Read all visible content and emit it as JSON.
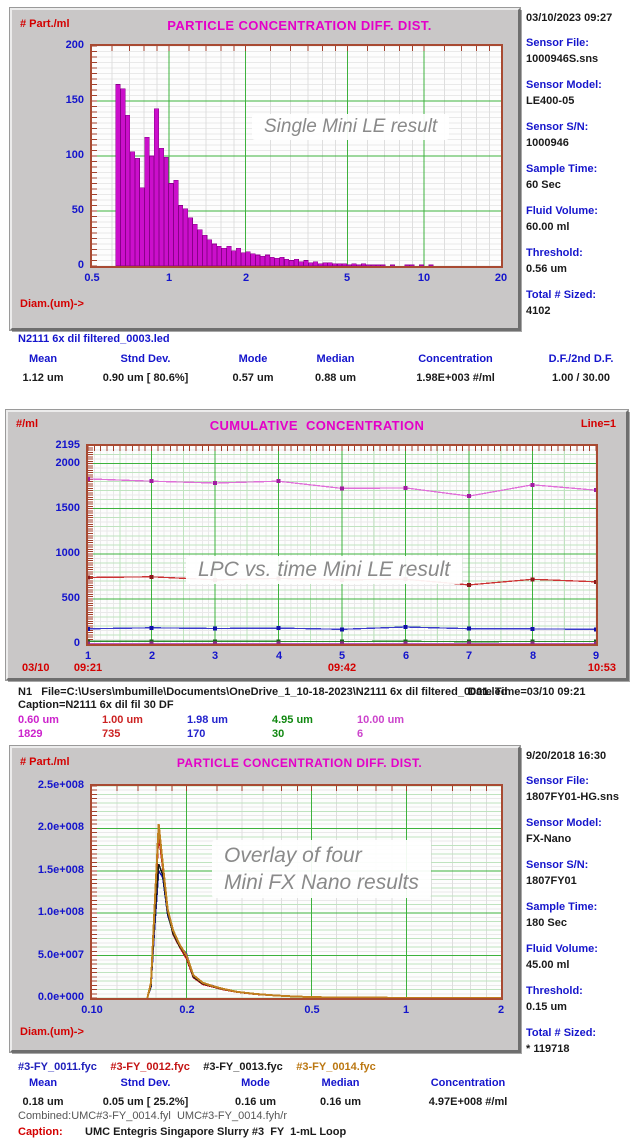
{
  "panel1": {
    "filename": "N2111 6x dil filtered_0003.led",
    "sidebar": {
      "datetime": "03/10/2023 09:27",
      "fields": [
        {
          "label": "Sensor File:",
          "value": "1000946S.sns"
        },
        {
          "label": "Sensor Model:",
          "value": "LE400-05"
        },
        {
          "label": "Sensor S/N:",
          "value": "1000946"
        },
        {
          "label": "Sample Time:",
          "value": "60 Sec"
        },
        {
          "label": "Fluid Volume:",
          "value": "60.00 ml"
        },
        {
          "label": "Threshold:",
          "value": "0.56 um"
        },
        {
          "label": "Total # Sized:",
          "value": "4102"
        }
      ]
    },
    "stats": {
      "headers": [
        "Mean",
        "Stnd Dev.",
        "Mode",
        "Median",
        "Concentration",
        "D.F./2nd D.F."
      ],
      "values": [
        "1.12 um",
        "0.90 um [ 80.6%]",
        "0.57 um",
        "0.88 um",
        "1.98E+003 #/ml",
        "1.00 / 30.00"
      ]
    }
  },
  "panel2": {
    "info_file": "N1   File=C:\\Users\\mbumille\\Documents\\OneDrive_1_10-18-2023\\N2111 6x dil filtered_0001.led",
    "info_datetime": "Date Time=03/10 09:21",
    "caption_line": "Caption=N2111 6x dil fil 30 DF",
    "channels": [
      {
        "size": "0.60 um",
        "count": "1829",
        "color": "#cc22cc"
      },
      {
        "size": "1.00 um",
        "count": "735",
        "color": "#cc2222"
      },
      {
        "size": "1.98 um",
        "count": "170",
        "color": "#2222cc"
      },
      {
        "size": "4.95 um",
        "count": "30",
        "color": "#118811"
      },
      {
        "size": "10.00 um",
        "count": "6",
        "color": "#cc44cc"
      }
    ]
  },
  "panel3": {
    "sidebar": {
      "datetime": "9/20/2018 16:30",
      "fields": [
        {
          "label": "Sensor File:",
          "value": "1807FY01-HG.sns"
        },
        {
          "label": "Sensor Model:",
          "value": "FX-Nano"
        },
        {
          "label": "Sensor S/N:",
          "value": "1807FY01"
        },
        {
          "label": "Sample Time:",
          "value": "180 Sec"
        },
        {
          "label": "Fluid Volume:",
          "value": "45.00 ml"
        },
        {
          "label": "Threshold:",
          "value": "0.15 um"
        },
        {
          "label": "Total # Sized:",
          "value": "* 119718"
        }
      ]
    },
    "files": [
      {
        "name": "#3-FY_0011.fyc",
        "color": "#2020bb"
      },
      {
        "name": "#3-FY_0012.fyc",
        "color": "#c41414"
      },
      {
        "name": "#3-FY_0013.fyc",
        "color": "#1a1a1a"
      },
      {
        "name": "#3-FY_0014.fyc",
        "color": "#bb7711"
      }
    ],
    "stats": {
      "headers": [
        "Mean",
        "Stnd Dev.",
        "Mode",
        "Median",
        "Concentration"
      ],
      "values": [
        "0.18 um",
        "0.05 um [ 25.2%]",
        "0.16 um",
        "0.16 um",
        "4.97E+008 #/ml"
      ]
    },
    "combined_line": "Combined:UMC#3-FY_0014.fyl  UMC#3-FY_0014.fyh/r",
    "caption_label": "Caption:",
    "caption_value": "UMC Entegris Singapore Slurry #3  FY  1-mL Loop"
  },
  "chart_data": [
    {
      "id": "le-diff",
      "type": "bar",
      "title": "PARTICLE CONCENTRATION DIFF. DIST.",
      "ylabel": "# Part./ml",
      "xlabel": "Diam.(um)->",
      "annotation": "Single Mini LE result",
      "x_scale": "log",
      "xlim": [
        0.5,
        20
      ],
      "ylim": [
        0,
        200
      ],
      "y_ticks": [
        {
          "v": 200,
          "t": "200"
        },
        {
          "v": 150,
          "t": "150"
        },
        {
          "v": 100,
          "t": "100"
        },
        {
          "v": 50,
          "t": "50"
        },
        {
          "v": 0,
          "t": "0"
        }
      ],
      "x_ticks": [
        {
          "v": 0.5,
          "t": "0.5"
        },
        {
          "v": 1,
          "t": "1"
        },
        {
          "v": 2,
          "t": "2"
        },
        {
          "v": 5,
          "t": "5"
        },
        {
          "v": 10,
          "t": "10"
        },
        {
          "v": 20,
          "t": "20"
        }
      ],
      "bars": {
        "start": 0.62,
        "log_step": 0.01887,
        "color": "#cb0fcb",
        "stroke": "#8a008a",
        "heights": [
          165,
          161,
          137,
          104,
          98,
          71,
          117,
          100,
          143,
          107,
          99,
          75,
          78,
          55,
          52,
          44,
          38,
          33,
          28,
          24,
          20,
          18,
          16,
          18,
          14,
          16,
          12,
          13,
          11,
          10,
          9,
          10,
          8,
          7,
          8,
          6,
          5,
          6,
          4,
          5,
          3,
          4,
          2,
          3,
          3,
          2,
          2,
          2,
          1,
          2,
          1,
          2,
          1,
          1,
          1,
          1,
          0,
          1,
          0,
          0,
          1,
          1,
          0,
          1,
          0,
          1
        ]
      },
      "grid": {
        "y_fine_step": 5,
        "y_major": [
          50,
          100,
          150
        ],
        "x_minor": [
          0.6,
          0.7,
          0.8,
          0.9,
          1.2,
          1.4,
          1.6,
          1.8,
          2.5,
          3,
          3.5,
          4,
          4.5,
          6,
          7,
          8,
          9,
          12,
          14,
          16,
          18
        ],
        "x_major": [
          1,
          2,
          5,
          10
        ],
        "tick_y_step": 5,
        "tick_x": true
      }
    },
    {
      "id": "le-cum",
      "type": "line",
      "title": "CUMULATIVE  CONCENTRATION",
      "corner_label": "Line=1",
      "ylabel": "#/ml",
      "annotation": "LPC vs. time Mini LE result",
      "x_scale": "linear",
      "xlim": [
        1,
        9
      ],
      "ylim": [
        0,
        2195
      ],
      "y_ticks": [
        {
          "v": 2195,
          "t": "2195"
        },
        {
          "v": 2000,
          "t": "2000"
        },
        {
          "v": 1500,
          "t": "1500"
        },
        {
          "v": 1000,
          "t": "1000"
        },
        {
          "v": 500,
          "t": "500"
        },
        {
          "v": 0,
          "t": "0"
        }
      ],
      "x_ticks": [
        {
          "v": 1,
          "t": "1"
        },
        {
          "v": 2,
          "t": "2"
        },
        {
          "v": 3,
          "t": "3"
        },
        {
          "v": 4,
          "t": "4"
        },
        {
          "v": 5,
          "t": "5"
        },
        {
          "v": 6,
          "t": "6"
        },
        {
          "v": 7,
          "t": "7"
        },
        {
          "v": 8,
          "t": "8"
        },
        {
          "v": 9,
          "t": "9"
        }
      ],
      "time_labels": {
        "date": "03/10",
        "start": "09:21",
        "mid": "09:42",
        "end": "10:53"
      },
      "x": [
        1,
        2,
        3,
        4,
        5,
        6,
        7,
        8,
        9
      ],
      "line_width": 1.3,
      "series": [
        {
          "name": "0.60 um",
          "color": "#df6fd8",
          "marker": "#a11ca1",
          "values": [
            1830,
            1805,
            1785,
            1805,
            1725,
            1730,
            1640,
            1765,
            1705
          ]
        },
        {
          "name": "1.00 um",
          "color": "#cd3333",
          "marker": "#8b1a1a",
          "values": [
            737,
            745,
            712,
            727,
            712,
            718,
            655,
            717,
            690
          ]
        },
        {
          "name": "1.98 um",
          "color": "#3a3acc",
          "marker": "#1111aa",
          "values": [
            168,
            180,
            172,
            176,
            163,
            188,
            170,
            167,
            163
          ]
        },
        {
          "name": "4.95 um",
          "color": "#2e8b2e",
          "marker": "#1a661a",
          "values": [
            30,
            29,
            30,
            29,
            28,
            30,
            26,
            28,
            27
          ]
        },
        {
          "name": "10.00 um",
          "color": "#c055c0",
          "marker": "#8b2e8b",
          "values": [
            6,
            6,
            6,
            6,
            5,
            6,
            5,
            6,
            6
          ]
        }
      ],
      "grid": {
        "y_fine_step": 50,
        "y_mid_step": 100,
        "y_major": [
          500,
          1000,
          1500,
          2000
        ],
        "x_fine_step": 0.1,
        "x_mid": [
          1.5,
          2.5,
          3.5,
          4.5,
          5.5,
          6.5,
          7.5,
          8.5
        ],
        "x_major": [
          2,
          3,
          4,
          5,
          6,
          7,
          8
        ],
        "tick_y_step": 25,
        "tick_x_step": 0.1
      }
    },
    {
      "id": "fx-diff",
      "type": "line",
      "title": "PARTICLE CONCENTRATION DIFF. DIST.",
      "ylabel": "# Part./ml",
      "xlabel": "Diam.(um)->",
      "annotation_line1": "Overlay of four",
      "annotation_line2": "Mini FX Nano results",
      "x_scale": "log",
      "xlim": [
        0.1,
        2
      ],
      "ylim": [
        0,
        250000000.0
      ],
      "y_ticks": [
        {
          "v": 250000000.0,
          "t": "2.5e+008"
        },
        {
          "v": 200000000.0,
          "t": "2.0e+008"
        },
        {
          "v": 150000000.0,
          "t": "1.5e+008"
        },
        {
          "v": 100000000.0,
          "t": "1.0e+008"
        },
        {
          "v": 50000000.0,
          "t": "5.0e+007"
        },
        {
          "v": 0,
          "t": "0.0e+000"
        }
      ],
      "x_ticks": [
        {
          "v": 0.1,
          "t": "0.10"
        },
        {
          "v": 0.2,
          "t": "0.2"
        },
        {
          "v": 0.5,
          "t": "0.5"
        },
        {
          "v": 1,
          "t": "1"
        },
        {
          "v": 2,
          "t": "2"
        }
      ],
      "x": [
        0.15,
        0.154,
        0.158,
        0.163,
        0.168,
        0.174,
        0.181,
        0.19,
        0.2,
        0.21,
        0.225,
        0.24,
        0.26,
        0.29,
        0.33,
        0.38,
        0.44,
        0.52,
        0.62,
        0.8,
        1.1,
        1.5,
        2.0
      ],
      "line_width": 1.5,
      "series": [
        {
          "name": "#3-FY_0011.fyc",
          "color": "#2020bb",
          "values": [
            0,
            13000000.0,
            80000000.0,
            150000000.0,
            142000000.0,
            98000000.0,
            78000000.0,
            62000000.0,
            52000000.0,
            26000000.0,
            18000000.0,
            15000000.0,
            11000000.0,
            7500000.0,
            5000000.0,
            3200000.0,
            1800000.0,
            1000000.0,
            600000.0,
            300000.0,
            150000.0,
            80000.0,
            50000.0
          ]
        },
        {
          "name": "#3-FY_0012.fyc",
          "color": "#c41414",
          "values": [
            0,
            16000000.0,
            95000000.0,
            192000000.0,
            152000000.0,
            102000000.0,
            75000000.0,
            60000000.0,
            46000000.0,
            24000000.0,
            16000000.0,
            13500000.0,
            10000000.0,
            6800000.0,
            4400000.0,
            2800000.0,
            1600000.0,
            900000.0,
            500000.0,
            250000.0,
            120000.0,
            60000.0,
            40000.0
          ]
        },
        {
          "name": "#3-FY_0013.fyc",
          "color": "#1a1a1a",
          "values": [
            0,
            14000000.0,
            88000000.0,
            158000000.0,
            145000000.0,
            100000000.0,
            76000000.0,
            61000000.0,
            49000000.0,
            25000000.0,
            17000000.0,
            14000000.0,
            10500000.0,
            7000000.0,
            4600000.0,
            3000000.0,
            1700000.0,
            950000.0,
            550000.0,
            280000.0,
            130000.0,
            70000.0,
            40000.0
          ]
        },
        {
          "name": "#3-FY_0014.fyc",
          "color": "#c08020",
          "width": 2,
          "values": [
            0,
            18000000.0,
            105000000.0,
            205000000.0,
            158000000.0,
            105000000.0,
            80000000.0,
            63000000.0,
            50000000.0,
            27000000.0,
            18000000.0,
            14500000.0,
            11000000.0,
            7200000.0,
            4800000.0,
            3100000.0,
            1800000.0,
            1000000.0,
            600000.0,
            300000.0,
            140000.0,
            70000.0,
            50000.0
          ]
        }
      ],
      "grid": {
        "y_fine_step": 5000000.0,
        "y_mid_step": 10000000.0,
        "y_major": [
          50000000.0,
          100000000.0,
          150000000.0,
          200000000.0
        ],
        "x_minor": [
          0.12,
          0.14,
          0.16,
          0.18,
          0.25,
          0.3,
          0.35,
          0.4,
          0.45,
          0.6,
          0.7,
          0.8,
          0.9,
          1.2,
          1.4,
          1.6,
          1.8
        ],
        "x_major": [
          0.2,
          0.5,
          1
        ],
        "tick_y_step": 5000000.0,
        "tick_x": true
      }
    }
  ]
}
